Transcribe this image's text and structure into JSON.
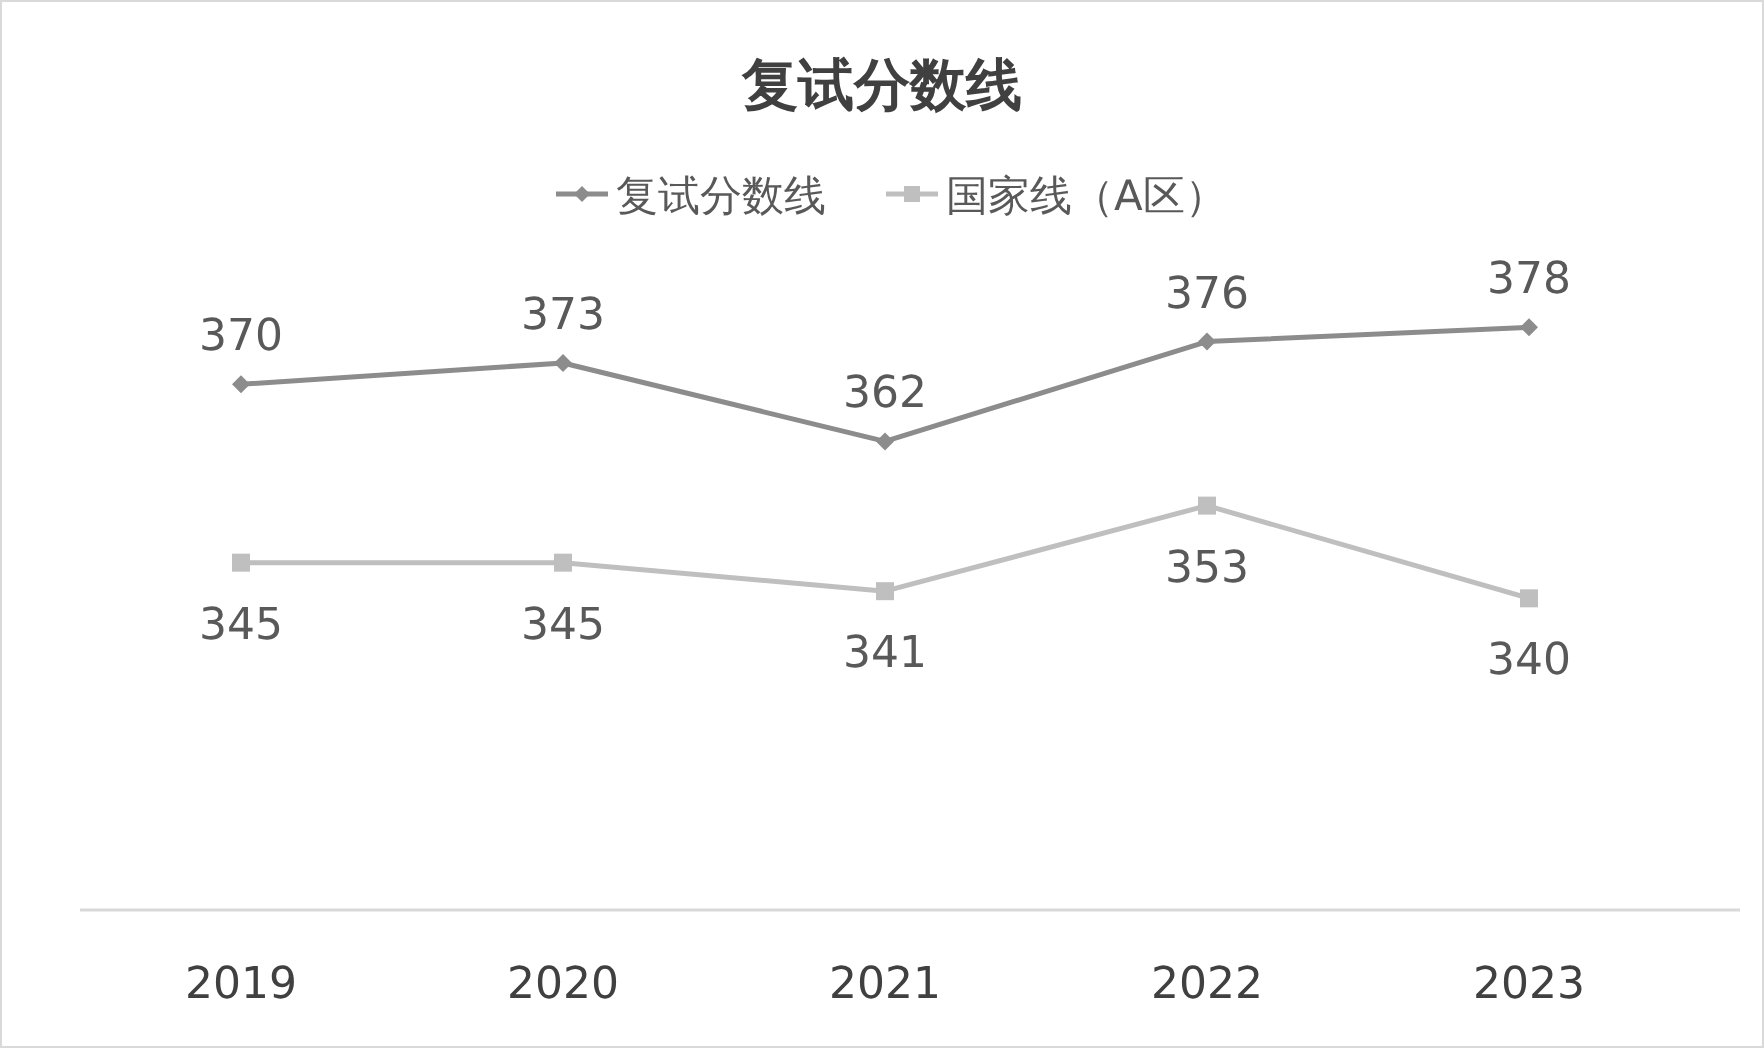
{
  "chart_data": {
    "type": "line",
    "title": "复试分数线",
    "categories": [
      "2019",
      "2020",
      "2021",
      "2022",
      "2023"
    ],
    "series": [
      {
        "name": "复试分数线",
        "color": "#8c8c8c",
        "marker": "diamond",
        "values": [
          370,
          373,
          362,
          376,
          378
        ]
      },
      {
        "name": "国家线（A区）",
        "color": "#bfbfbf",
        "marker": "square",
        "values": [
          345,
          345,
          341,
          353,
          340
        ]
      }
    ],
    "data_labels": true,
    "legend": "top"
  }
}
